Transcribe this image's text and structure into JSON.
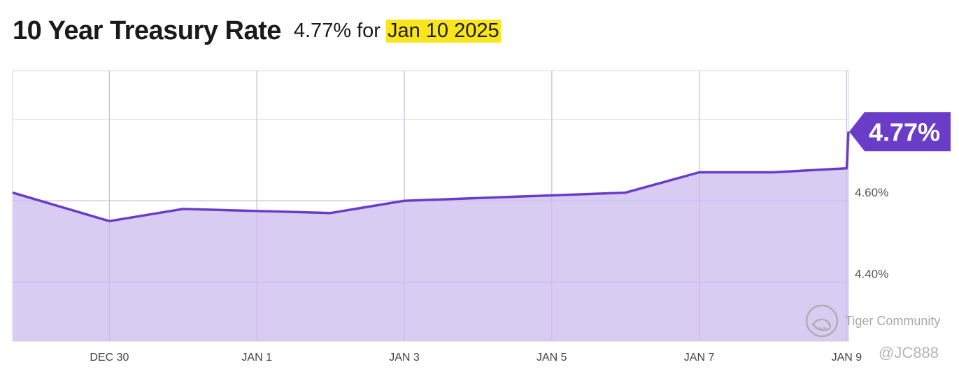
{
  "header": {
    "title": "10 Year Treasury Rate",
    "value": "4.77%",
    "for": "for",
    "date": "Jan 10 2025"
  },
  "watermark": {
    "text": "Tiger Community",
    "handle": "@JC888",
    "icon": "tiger-logo-icon"
  },
  "colors": {
    "line": "#6a3dc8",
    "fill": "#d9ccf2",
    "badge": "#6a3dc8",
    "grid": "#e3e3e3",
    "highlight": "#f9e51d"
  },
  "chart_data": {
    "type": "area",
    "title": "10 Year Treasury Rate",
    "x_ticks": [
      "DEC 30",
      "JAN 1",
      "JAN 3",
      "JAN 5",
      "JAN 7",
      "JAN 9"
    ],
    "x": [
      "2024-12-27",
      "2024-12-30",
      "2024-12-31",
      "2025-01-02",
      "2025-01-03",
      "2025-01-06",
      "2025-01-07",
      "2025-01-08",
      "2025-01-09",
      "2025-01-10"
    ],
    "series": [
      {
        "values": [
          4.62,
          4.55,
          4.58,
          4.57,
          4.6,
          4.62,
          4.67,
          4.67,
          4.68,
          4.77
        ]
      }
    ],
    "y_ticks": [
      "4.60%",
      "4.40%"
    ],
    "ylim": [
      4.255,
      4.92
    ],
    "last_value_label": "4.77%",
    "grid": true
  }
}
